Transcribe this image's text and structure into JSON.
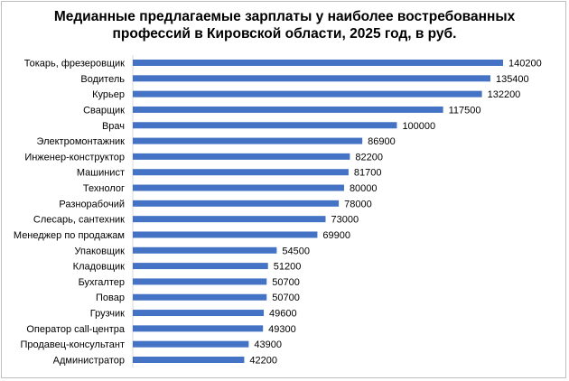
{
  "chart_data": {
    "type": "bar",
    "orientation": "horizontal",
    "title_lines": [
      "Медианные предлагаемые зарплаты у наиболее востребованных",
      "профессий в Кировской области, 2025 год, в руб."
    ],
    "categories": [
      "Токарь, фрезеровщик",
      "Водитель",
      "Курьер",
      "Сварщик",
      "Врач",
      "Электромонтажник",
      "Инженер-конструктор",
      "Машинист",
      "Технолог",
      "Разнорабочий",
      "Слесарь, сантехник",
      "Менеджер по продажам",
      "Упаковщик",
      "Кладовщик",
      "Бухгалтер",
      "Повар",
      "Грузчик",
      "Оператор call-центра",
      "Продавец-консультант",
      "Администратор"
    ],
    "values": [
      140200,
      135400,
      132200,
      117500,
      100000,
      86900,
      82200,
      81700,
      80000,
      78000,
      73000,
      69900,
      54500,
      51200,
      50700,
      50700,
      49600,
      49300,
      43900,
      42200
    ],
    "data_labels": [
      "140200",
      "135400",
      "132200",
      "117500",
      "100000",
      "86900",
      "82200",
      "81700",
      "80000",
      "78000",
      "73000",
      "69900",
      "54500",
      "51200",
      "50700",
      "50700",
      "49600",
      "49300",
      "43900",
      "42200"
    ],
    "xlim": [
      0,
      140200
    ],
    "axis_visible": false,
    "grid": false,
    "legend": "none",
    "bar_color": "#4472c4"
  }
}
